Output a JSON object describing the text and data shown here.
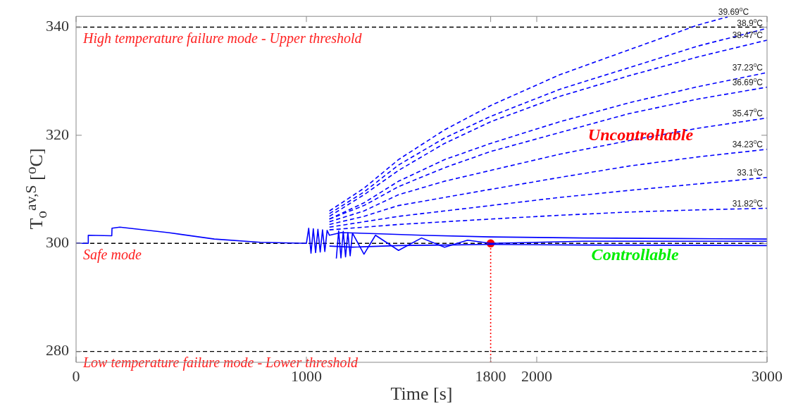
{
  "chart_data": {
    "type": "line",
    "xlabel": "Time [s]",
    "ylabel": "T$_{o}$$^{av,S}$ [$^{o}$C]",
    "xlim": [
      0,
      3000
    ],
    "xticks": [
      0,
      1000,
      1800,
      2000,
      3000
    ],
    "ylim": [
      278,
      342
    ],
    "yticks": [
      280,
      300,
      320,
      340
    ],
    "grid": false,
    "marker": "none",
    "line_style": "solid",
    "series": [
      {
        "color": "#0000ff",
        "x": [
          0,
          52,
          53,
          155,
          156,
          190,
          400,
          600,
          800,
          1000,
          1010,
          1020,
          1030,
          1040,
          1050,
          1060,
          1070,
          1080,
          1090,
          1100,
          1150,
          1300,
          1500,
          1800,
          2200,
          2600,
          3000
        ],
        "values": [
          300,
          300,
          301.5,
          301.4,
          302.8,
          303,
          302,
          300.8,
          300.2,
          300,
          302.8,
          298.2,
          302.7,
          298.3,
          302.6,
          298.4,
          302.5,
          298.5,
          302.4,
          301.5,
          302,
          301.8,
          301.5,
          301.2,
          301,
          300.9,
          300.8
        ]
      },
      {
        "color": "#0000ff",
        "x": [
          1130,
          1140,
          1150,
          1160,
          1170,
          1180,
          1190,
          1200,
          1250,
          1300,
          1400,
          1500,
          1600,
          1700,
          1800,
          2200,
          3000
        ],
        "values": [
          297.2,
          302.3,
          297.3,
          302.2,
          297.5,
          302,
          297.7,
          301.9,
          298,
          301.5,
          298.7,
          301,
          299.3,
          300.6,
          300,
          300.4,
          300.4
        ]
      },
      {
        "color": "#0000ff",
        "x": [
          1100,
          1200,
          1400,
          1600,
          1800,
          2200,
          3000
        ],
        "values": [
          299.5,
          299.3,
          299.6,
          299.7,
          299.8,
          299.7,
          299.6
        ]
      },
      {
        "name": "39.69$^{o}$C",
        "color": "#0000ff",
        "line_style": "dashed",
        "x": [
          1100,
          1250,
          1400,
          1600,
          1800,
          2100,
          2400,
          2700,
          2829
        ],
        "values": [
          306,
          310.2,
          315.5,
          321,
          325.5,
          331.2,
          335.8,
          340.4,
          341.9
        ]
      },
      {
        "name": "38.9$^{o}$C",
        "color": "#0000ff",
        "line_style": "dashed",
        "x": [
          1100,
          1250,
          1400,
          1600,
          1800,
          2100,
          2400,
          2700,
          3000
        ],
        "values": [
          305.5,
          309.5,
          314.5,
          319.5,
          323.5,
          328.5,
          332.5,
          336.5,
          339.8
        ]
      },
      {
        "name": "38.47$^{o}$C",
        "color": "#0000ff",
        "line_style": "dashed",
        "x": [
          1100,
          1250,
          1400,
          1600,
          1800,
          2100,
          2400,
          2700,
          3000
        ],
        "values": [
          305,
          309,
          313.5,
          318.5,
          322.5,
          327.2,
          331,
          334.5,
          337.6
        ]
      },
      {
        "name": "37.23$^{o}$C",
        "color": "#0000ff",
        "line_style": "dashed",
        "x": [
          1100,
          1250,
          1400,
          1600,
          1800,
          2100,
          2400,
          2700,
          3000
        ],
        "values": [
          304.5,
          307.5,
          311.5,
          315.5,
          318.5,
          322.5,
          326,
          329,
          331.6
        ]
      },
      {
        "name": "36.69$^{o}$C",
        "color": "#0000ff",
        "line_style": "dashed",
        "x": [
          1100,
          1250,
          1400,
          1600,
          1800,
          2100,
          2400,
          2700,
          3000
        ],
        "values": [
          304.5,
          307,
          310.5,
          314,
          317,
          320.5,
          324,
          326.7,
          328.9
        ]
      },
      {
        "name": "35.47$^{o}$C",
        "color": "#0000ff",
        "line_style": "dashed",
        "x": [
          1100,
          1250,
          1400,
          1600,
          1800,
          2100,
          2400,
          2700,
          3000
        ],
        "values": [
          304,
          306,
          309,
          311.5,
          313.5,
          316.5,
          319,
          321.3,
          323.2
        ]
      },
      {
        "name": "34.23$^{o}$C",
        "color": "#0000ff",
        "line_style": "dashed",
        "x": [
          1100,
          1250,
          1400,
          1600,
          1800,
          2100,
          2400,
          2700,
          3000
        ],
        "values": [
          303.5,
          305,
          307,
          308.5,
          310,
          312.2,
          314.3,
          316,
          317.4
        ]
      },
      {
        "name": "33.1$^{o}$C",
        "color": "#0000ff",
        "line_style": "dashed",
        "x": [
          1100,
          1250,
          1400,
          1600,
          1800,
          2100,
          2400,
          2700,
          3000
        ],
        "values": [
          303,
          304,
          305,
          306,
          307,
          308.5,
          309.8,
          311,
          312.2
        ]
      },
      {
        "name": "31.82$^{o}$C",
        "color": "#0000ff",
        "line_style": "dashed",
        "x": [
          1100,
          1250,
          1400,
          1600,
          1800,
          2100,
          2400,
          2700,
          3000
        ],
        "values": [
          302.5,
          303,
          303.5,
          304,
          304.5,
          305.2,
          305.8,
          306.2,
          306.5
        ]
      },
      {
        "color": "#ff0000",
        "line_style": "dotted",
        "x": [
          1800,
          1800
        ],
        "values": [
          278,
          300
        ]
      },
      {
        "type": "scatter",
        "marker": "circle",
        "color": "#ff0000",
        "x": [
          1800
        ],
        "values": [
          300
        ]
      }
    ],
    "ref_lines": [
      {
        "axis": "y",
        "value": 340,
        "label": "High temperature failure mode - Upper threshold",
        "color": "#000000",
        "line_style": "dashed"
      },
      {
        "axis": "y",
        "value": 300,
        "label": "Safe mode",
        "color": "#000000",
        "line_style": "dashed"
      },
      {
        "axis": "y",
        "value": 280,
        "label": "Low temperature failure mode - Lower threshold",
        "color": "#000000",
        "line_style": "dashed"
      }
    ],
    "annotations": [
      "Uncontrollable",
      "Controllable"
    ]
  }
}
